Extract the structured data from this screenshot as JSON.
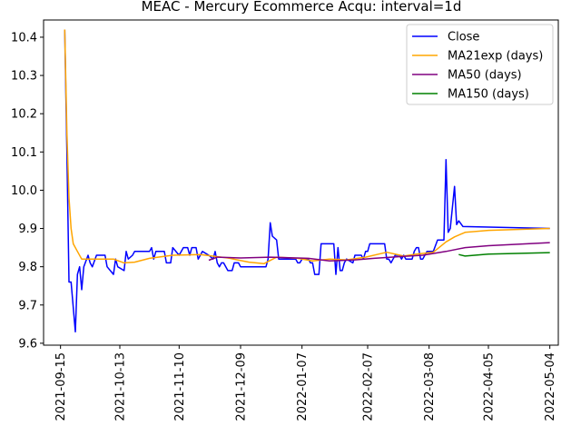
{
  "chart_data": {
    "type": "line",
    "title": "MEAC - Mercury Ecommerce Acqu: interval=1d",
    "xlabel": "",
    "ylabel": "",
    "x_range": [
      "2021-09-07",
      "2022-05-08"
    ],
    "ylim": [
      9.595,
      10.445
    ],
    "x_ticks": [
      "2021-09-15",
      "2021-10-13",
      "2021-11-10",
      "2021-12-09",
      "2022-01-07",
      "2022-02-07",
      "2022-03-08",
      "2022-04-05",
      "2022-05-04"
    ],
    "y_ticks": [
      "9.6",
      "9.7",
      "9.8",
      "9.9",
      "10.0",
      "10.1",
      "10.2",
      "10.3",
      "10.4"
    ],
    "grid": false,
    "legend_position": "top-right",
    "series": [
      {
        "name": "Close",
        "color": "#0000ff",
        "points": [
          [
            "2021-09-17",
            10.42
          ],
          [
            "2021-09-18",
            10.1
          ],
          [
            "2021-09-19",
            9.76
          ],
          [
            "2021-09-20",
            9.76
          ],
          [
            "2021-09-22",
            9.63
          ],
          [
            "2021-09-23",
            9.78
          ],
          [
            "2021-09-24",
            9.8
          ],
          [
            "2021-09-25",
            9.74
          ],
          [
            "2021-09-26",
            9.8
          ],
          [
            "2021-09-28",
            9.83
          ],
          [
            "2021-09-29",
            9.81
          ],
          [
            "2021-09-30",
            9.8
          ],
          [
            "2021-10-02",
            9.83
          ],
          [
            "2021-10-06",
            9.83
          ],
          [
            "2021-10-07",
            9.8
          ],
          [
            "2021-10-10",
            9.78
          ],
          [
            "2021-10-11",
            9.82
          ],
          [
            "2021-10-12",
            9.8
          ],
          [
            "2021-10-15",
            9.79
          ],
          [
            "2021-10-16",
            9.84
          ],
          [
            "2021-10-17",
            9.82
          ],
          [
            "2021-10-19",
            9.83
          ],
          [
            "2021-10-20",
            9.84
          ],
          [
            "2021-10-27",
            9.84
          ],
          [
            "2021-10-28",
            9.85
          ],
          [
            "2021-10-29",
            9.82
          ],
          [
            "2021-10-30",
            9.84
          ],
          [
            "2021-11-03",
            9.84
          ],
          [
            "2021-11-04",
            9.81
          ],
          [
            "2021-11-06",
            9.81
          ],
          [
            "2021-11-07",
            9.85
          ],
          [
            "2021-11-10",
            9.83
          ],
          [
            "2021-11-12",
            9.85
          ],
          [
            "2021-11-14",
            9.85
          ],
          [
            "2021-11-15",
            9.83
          ],
          [
            "2021-11-16",
            9.85
          ],
          [
            "2021-11-18",
            9.85
          ],
          [
            "2021-11-19",
            9.82
          ],
          [
            "2021-11-21",
            9.84
          ],
          [
            "2021-11-24",
            9.83
          ],
          [
            "2021-11-26",
            9.82
          ],
          [
            "2021-11-27",
            9.84
          ],
          [
            "2021-11-28",
            9.81
          ],
          [
            "2021-11-29",
            9.8
          ],
          [
            "2021-11-30",
            9.81
          ],
          [
            "2021-12-01",
            9.81
          ],
          [
            "2021-12-03",
            9.79
          ],
          [
            "2021-12-05",
            9.79
          ],
          [
            "2021-12-06",
            9.81
          ],
          [
            "2021-12-08",
            9.81
          ],
          [
            "2021-12-09",
            9.8
          ],
          [
            "2021-12-21",
            9.8
          ],
          [
            "2021-12-22",
            9.82
          ],
          [
            "2021-12-23",
            9.915
          ],
          [
            "2021-12-24",
            9.88
          ],
          [
            "2021-12-26",
            9.87
          ],
          [
            "2021-12-27",
            9.82
          ],
          [
            "2022-01-04",
            9.82
          ],
          [
            "2022-01-05",
            9.81
          ],
          [
            "2022-01-06",
            9.81
          ],
          [
            "2022-01-07",
            9.82
          ],
          [
            "2022-01-10",
            9.82
          ],
          [
            "2022-01-11",
            9.81
          ],
          [
            "2022-01-12",
            9.81
          ],
          [
            "2022-01-13",
            9.78
          ],
          [
            "2022-01-15",
            9.78
          ],
          [
            "2022-01-16",
            9.86
          ],
          [
            "2022-01-22",
            9.86
          ],
          [
            "2022-01-23",
            9.78
          ],
          [
            "2022-01-24",
            9.85
          ],
          [
            "2022-01-25",
            9.79
          ],
          [
            "2022-01-26",
            9.79
          ],
          [
            "2022-01-27",
            9.81
          ],
          [
            "2022-01-28",
            9.82
          ],
          [
            "2022-01-31",
            9.81
          ],
          [
            "2022-02-01",
            9.83
          ],
          [
            "2022-02-04",
            9.83
          ],
          [
            "2022-02-05",
            9.82
          ],
          [
            "2022-02-06",
            9.84
          ],
          [
            "2022-02-07",
            9.84
          ],
          [
            "2022-02-08",
            9.86
          ],
          [
            "2022-02-15",
            9.86
          ],
          [
            "2022-02-16",
            9.82
          ],
          [
            "2022-02-17",
            9.82
          ],
          [
            "2022-02-18",
            9.81
          ],
          [
            "2022-02-19",
            9.82
          ],
          [
            "2022-02-20",
            9.83
          ],
          [
            "2022-02-22",
            9.83
          ],
          [
            "2022-02-23",
            9.82
          ],
          [
            "2022-02-24",
            9.83
          ],
          [
            "2022-02-25",
            9.82
          ],
          [
            "2022-02-28",
            9.82
          ],
          [
            "2022-03-01",
            9.84
          ],
          [
            "2022-03-02",
            9.85
          ],
          [
            "2022-03-03",
            9.85
          ],
          [
            "2022-03-04",
            9.82
          ],
          [
            "2022-03-05",
            9.82
          ],
          [
            "2022-03-07",
            9.84
          ],
          [
            "2022-03-10",
            9.84
          ],
          [
            "2022-03-12",
            9.87
          ],
          [
            "2022-03-15",
            9.87
          ],
          [
            "2022-03-16",
            10.08
          ],
          [
            "2022-03-17",
            9.89
          ],
          [
            "2022-03-18",
            9.9
          ],
          [
            "2022-03-20",
            10.01
          ],
          [
            "2022-03-21",
            9.91
          ],
          [
            "2022-03-22",
            9.92
          ],
          [
            "2022-03-24",
            9.905
          ],
          [
            "2022-05-04",
            9.9
          ]
        ]
      },
      {
        "name": "MA21exp (days)",
        "color": "#ffa500",
        "points": [
          [
            "2021-09-17",
            10.42
          ],
          [
            "2021-09-18",
            10.15
          ],
          [
            "2021-09-19",
            9.98
          ],
          [
            "2021-09-20",
            9.9
          ],
          [
            "2021-09-21",
            9.86
          ],
          [
            "2021-09-23",
            9.84
          ],
          [
            "2021-09-25",
            9.82
          ],
          [
            "2021-09-28",
            9.82
          ],
          [
            "2021-10-02",
            9.82
          ],
          [
            "2021-10-10",
            9.82
          ],
          [
            "2021-10-15",
            9.81
          ],
          [
            "2021-10-20",
            9.812
          ],
          [
            "2021-10-27",
            9.822
          ],
          [
            "2021-11-07",
            9.83
          ],
          [
            "2021-11-20",
            9.832
          ],
          [
            "2021-12-03",
            9.823
          ],
          [
            "2021-12-13",
            9.812
          ],
          [
            "2021-12-20",
            9.808
          ],
          [
            "2021-12-26",
            9.825
          ],
          [
            "2022-01-05",
            9.822
          ],
          [
            "2022-01-12",
            9.815
          ],
          [
            "2022-01-20",
            9.82
          ],
          [
            "2022-01-28",
            9.818
          ],
          [
            "2022-02-06",
            9.825
          ],
          [
            "2022-02-16",
            9.838
          ],
          [
            "2022-02-24",
            9.828
          ],
          [
            "2022-03-02",
            9.833
          ],
          [
            "2022-03-10",
            9.838
          ],
          [
            "2022-03-16",
            9.865
          ],
          [
            "2022-03-20",
            9.878
          ],
          [
            "2022-03-25",
            9.89
          ],
          [
            "2022-04-05",
            9.895
          ],
          [
            "2022-05-04",
            9.9
          ]
        ]
      },
      {
        "name": "MA50 (days)",
        "color": "#800080",
        "points": [
          [
            "2021-11-24",
            9.817
          ],
          [
            "2021-11-28",
            9.825
          ],
          [
            "2021-12-09",
            9.823
          ],
          [
            "2021-12-23",
            9.825
          ],
          [
            "2022-01-10",
            9.822
          ],
          [
            "2022-01-20",
            9.815
          ],
          [
            "2022-02-01",
            9.818
          ],
          [
            "2022-02-10",
            9.822
          ],
          [
            "2022-02-24",
            9.827
          ],
          [
            "2022-03-05",
            9.83
          ],
          [
            "2022-03-16",
            9.84
          ],
          [
            "2022-03-25",
            9.85
          ],
          [
            "2022-04-05",
            9.855
          ],
          [
            "2022-05-04",
            9.863
          ]
        ]
      },
      {
        "name": "MA150 (days)",
        "color": "#008000",
        "points": [
          [
            "2022-03-22",
            9.832
          ],
          [
            "2022-03-25",
            9.828
          ],
          [
            "2022-04-05",
            9.833
          ],
          [
            "2022-05-04",
            9.837
          ]
        ]
      }
    ]
  }
}
